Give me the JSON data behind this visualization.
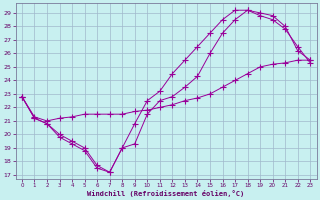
{
  "xlabel": "Windchill (Refroidissement éolien,°C)",
  "background_color": "#c8f0f0",
  "grid_color": "#a0b8cc",
  "line_color": "#990099",
  "xlim": [
    -0.5,
    23.5
  ],
  "ylim": [
    16.7,
    29.7
  ],
  "yticks": [
    17,
    18,
    19,
    20,
    21,
    22,
    23,
    24,
    25,
    26,
    27,
    28,
    29
  ],
  "xticks": [
    0,
    1,
    2,
    3,
    4,
    5,
    6,
    7,
    8,
    9,
    10,
    11,
    12,
    13,
    14,
    15,
    16,
    17,
    18,
    19,
    20,
    21,
    22,
    23
  ],
  "line1_x": [
    0,
    1,
    2,
    3,
    4,
    5,
    6,
    7,
    8,
    9,
    10,
    11,
    12,
    13,
    14,
    15,
    16,
    17,
    18,
    19,
    20,
    21,
    22,
    23
  ],
  "line1_y": [
    22.8,
    21.2,
    20.8,
    19.8,
    19.3,
    18.8,
    17.5,
    17.2,
    19.0,
    19.3,
    21.5,
    22.5,
    22.8,
    23.5,
    24.3,
    26.0,
    27.5,
    28.5,
    29.2,
    29.0,
    28.8,
    28.0,
    26.2,
    25.5
  ],
  "line2_x": [
    0,
    1,
    2,
    3,
    4,
    5,
    6,
    7,
    8,
    9,
    10,
    11,
    12,
    13,
    14,
    15,
    16,
    17,
    18,
    19,
    20,
    21,
    22,
    23
  ],
  "line2_y": [
    22.8,
    21.2,
    20.8,
    20.0,
    19.5,
    19.0,
    17.7,
    17.2,
    19.0,
    20.8,
    22.5,
    23.2,
    24.5,
    25.5,
    26.5,
    27.5,
    28.5,
    29.2,
    29.2,
    28.8,
    28.5,
    27.8,
    26.5,
    25.3
  ],
  "line3_x": [
    0,
    1,
    2,
    3,
    4,
    5,
    6,
    7,
    8,
    9,
    10,
    11,
    12,
    13,
    14,
    15,
    16,
    17,
    18,
    19,
    20,
    21,
    22,
    23
  ],
  "line3_y": [
    22.8,
    21.3,
    21.0,
    21.2,
    21.3,
    21.5,
    21.5,
    21.5,
    21.5,
    21.7,
    21.8,
    22.0,
    22.2,
    22.5,
    22.7,
    23.0,
    23.5,
    24.0,
    24.5,
    25.0,
    25.2,
    25.3,
    25.5,
    25.5
  ]
}
